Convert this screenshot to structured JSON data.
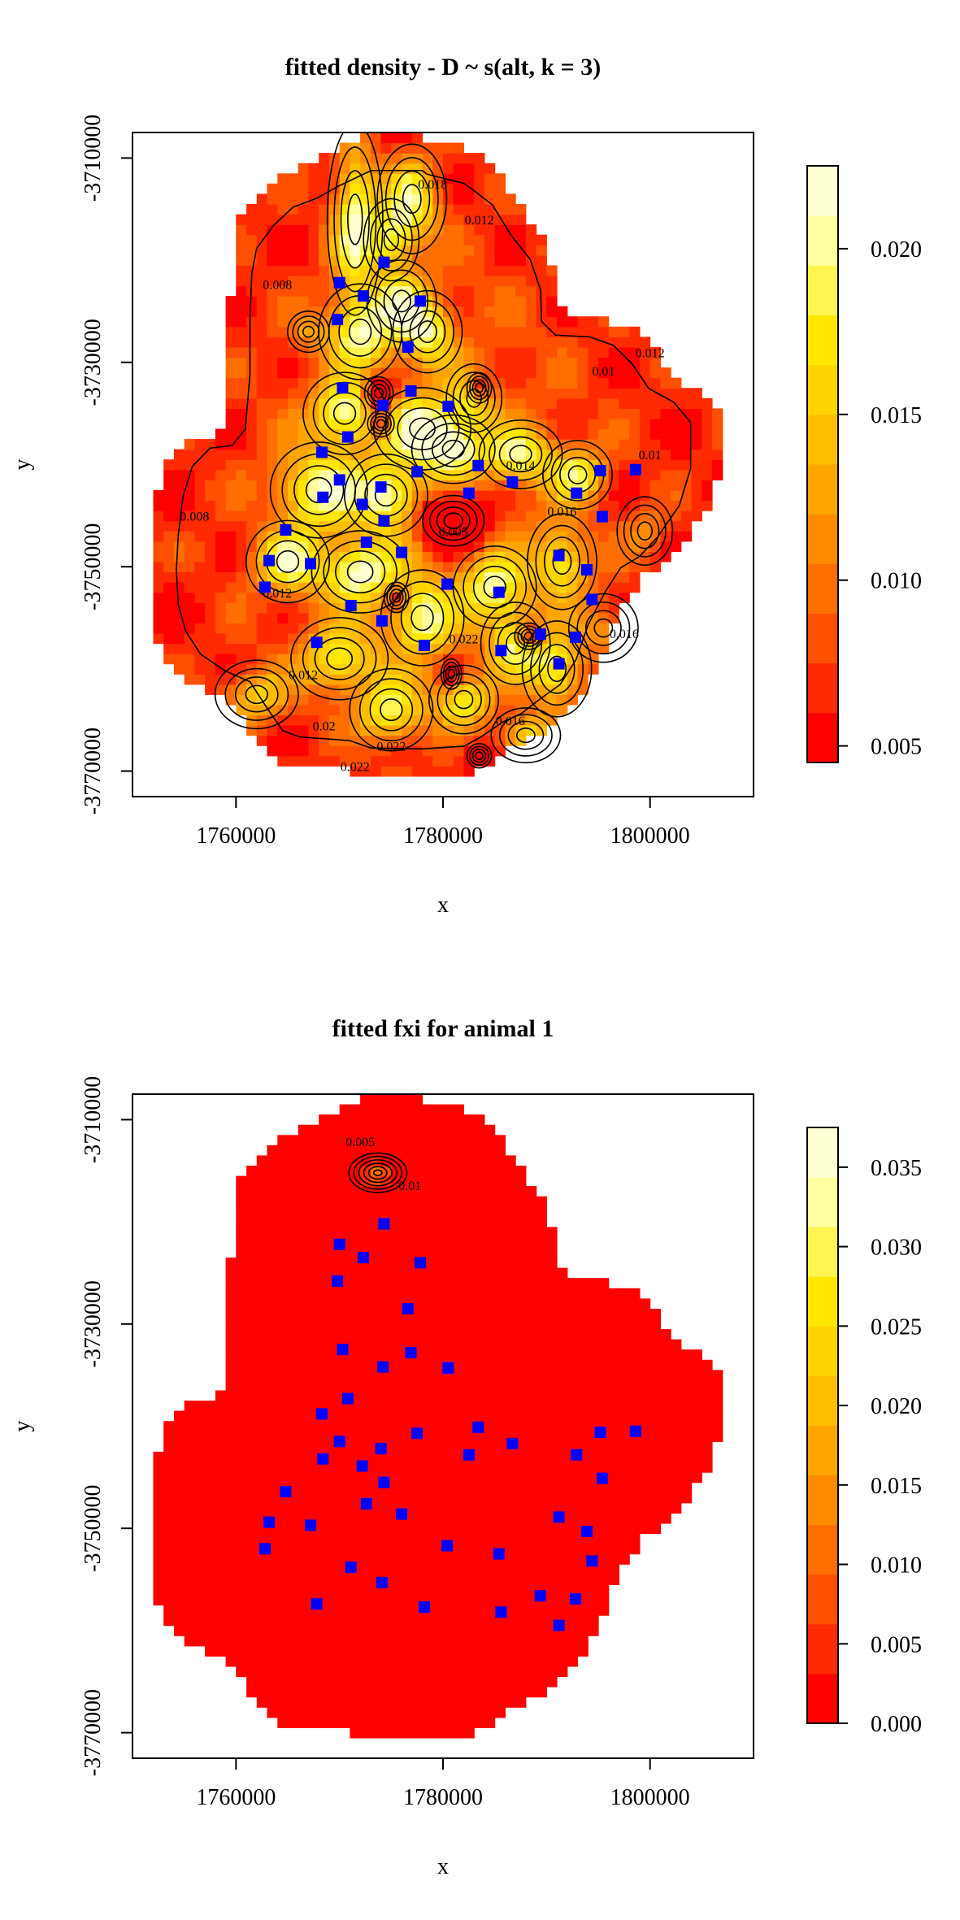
{
  "chart_data": [
    {
      "type": "heatmap",
      "title": "fitted density - D ~ s(alt, k = 3)",
      "xlabel": "x",
      "ylabel": "y",
      "xlim": [
        1750000,
        1810000
      ],
      "ylim": [
        -3772500,
        -3707500
      ],
      "x_ticks": [
        1760000,
        1780000,
        1800000
      ],
      "x_tick_labels": [
        "1760000",
        "1780000",
        "1800000"
      ],
      "y_ticks": [
        -3710000,
        -3730000,
        -3750000,
        -3770000
      ],
      "y_tick_labels": [
        "-3710000",
        "-3730000",
        "-3750000",
        "-3770000"
      ],
      "colorbar": {
        "min": 0.0045,
        "max": 0.0225,
        "ticks": [
          0.005,
          0.01,
          0.015,
          0.02
        ],
        "tick_labels": [
          "0.005",
          "0.010",
          "0.015",
          "0.020"
        ],
        "colors": [
          "#ff0000",
          "#ff2a00",
          "#ff4f00",
          "#ff6f00",
          "#ff8c00",
          "#ffa500",
          "#ffbe00",
          "#ffd400",
          "#ffe700",
          "#fff550",
          "#ffffa0",
          "#ffffd4"
        ]
      },
      "contour_labels": [
        "0.008",
        "0.012",
        "0.01",
        "0.014",
        "0.016",
        "0.022",
        "0.005",
        "0.018",
        "0.02"
      ],
      "traps": [
        [
          1774300,
          -3720200
        ],
        [
          1770000,
          -3722200
        ],
        [
          1772300,
          -3723500
        ],
        [
          1777800,
          -3724000
        ],
        [
          1769800,
          -3725800
        ],
        [
          1776600,
          -3728500
        ],
        [
          1770300,
          -3732500
        ],
        [
          1776900,
          -3732800
        ],
        [
          1774200,
          -3734200
        ],
        [
          1780500,
          -3734300
        ],
        [
          1770800,
          -3737300
        ],
        [
          1768300,
          -3738800
        ],
        [
          1783400,
          -3740100
        ],
        [
          1777500,
          -3740700
        ],
        [
          1795200,
          -3740600
        ],
        [
          1798600,
          -3740500
        ],
        [
          1770000,
          -3741500
        ],
        [
          1786700,
          -3741700
        ],
        [
          1774000,
          -3742200
        ],
        [
          1782500,
          -3742800
        ],
        [
          1792900,
          -3742800
        ],
        [
          1768400,
          -3743200
        ],
        [
          1772200,
          -3743900
        ],
        [
          1795400,
          -3745100
        ],
        [
          1774300,
          -3745500
        ],
        [
          1764800,
          -3746400
        ],
        [
          1772600,
          -3747600
        ],
        [
          1776000,
          -3748600
        ],
        [
          1791200,
          -3748900
        ],
        [
          1763200,
          -3749400
        ],
        [
          1767200,
          -3749700
        ],
        [
          1793900,
          -3750300
        ],
        [
          1780400,
          -3751700
        ],
        [
          1762800,
          -3752000
        ],
        [
          1785400,
          -3752500
        ],
        [
          1794400,
          -3753200
        ],
        [
          1771100,
          -3753800
        ],
        [
          1774100,
          -3755300
        ],
        [
          1789400,
          -3756600
        ],
        [
          1792800,
          -3756900
        ],
        [
          1767800,
          -3757400
        ],
        [
          1778200,
          -3757700
        ],
        [
          1785600,
          -3758200
        ],
        [
          1791200,
          -3759500
        ]
      ]
    },
    {
      "type": "heatmap",
      "title": "fitted fxi for animal 1",
      "xlabel": "x",
      "ylabel": "y",
      "xlim": [
        1750000,
        1810000
      ],
      "ylim": [
        -3772500,
        -3707500
      ],
      "x_ticks": [
        1760000,
        1780000,
        1800000
      ],
      "x_tick_labels": [
        "1760000",
        "1780000",
        "1800000"
      ],
      "y_ticks": [
        -3710000,
        -3730000,
        -3750000,
        -3770000
      ],
      "y_tick_labels": [
        "-3710000",
        "-3730000",
        "-3750000",
        "-3770000"
      ],
      "colorbar": {
        "min": 0,
        "max": 0.0375,
        "ticks": [
          0,
          0.005,
          0.01,
          0.015,
          0.02,
          0.025,
          0.03,
          0.035
        ],
        "tick_labels": [
          "0.000",
          "0.005",
          "0.010",
          "0.015",
          "0.020",
          "0.025",
          "0.030",
          "0.035"
        ],
        "colors": [
          "#ff0000",
          "#ff2a00",
          "#ff4f00",
          "#ff6f00",
          "#ff8c00",
          "#ffa500",
          "#ffbe00",
          "#ffd400",
          "#ffe700",
          "#fff550",
          "#ffffa0",
          "#ffffd4"
        ]
      },
      "contour_labels": [
        "0.005",
        "0.01"
      ],
      "traps": [
        [
          1774300,
          -3720200
        ],
        [
          1770000,
          -3722200
        ],
        [
          1772300,
          -3723500
        ],
        [
          1777800,
          -3724000
        ],
        [
          1769800,
          -3725800
        ],
        [
          1776600,
          -3728500
        ],
        [
          1770300,
          -3732500
        ],
        [
          1776900,
          -3732800
        ],
        [
          1774200,
          -3734200
        ],
        [
          1780500,
          -3734300
        ],
        [
          1770800,
          -3737300
        ],
        [
          1768300,
          -3738800
        ],
        [
          1783400,
          -3740100
        ],
        [
          1777500,
          -3740700
        ],
        [
          1795200,
          -3740600
        ],
        [
          1798600,
          -3740500
        ],
        [
          1770000,
          -3741500
        ],
        [
          1786700,
          -3741700
        ],
        [
          1774000,
          -3742200
        ],
        [
          1782500,
          -3742800
        ],
        [
          1792900,
          -3742800
        ],
        [
          1768400,
          -3743200
        ],
        [
          1772200,
          -3743900
        ],
        [
          1795400,
          -3745100
        ],
        [
          1774300,
          -3745500
        ],
        [
          1764800,
          -3746400
        ],
        [
          1772600,
          -3747600
        ],
        [
          1776000,
          -3748600
        ],
        [
          1791200,
          -3748900
        ],
        [
          1763200,
          -3749400
        ],
        [
          1767200,
          -3749700
        ],
        [
          1793900,
          -3750300
        ],
        [
          1780400,
          -3751700
        ],
        [
          1762800,
          -3752000
        ],
        [
          1785400,
          -3752500
        ],
        [
          1794400,
          -3753200
        ],
        [
          1771100,
          -3753800
        ],
        [
          1774100,
          -3755300
        ],
        [
          1789400,
          -3756600
        ],
        [
          1792800,
          -3756900
        ],
        [
          1767800,
          -3757400
        ],
        [
          1778200,
          -3757700
        ],
        [
          1785600,
          -3758200
        ],
        [
          1791200,
          -3759500
        ]
      ]
    }
  ]
}
